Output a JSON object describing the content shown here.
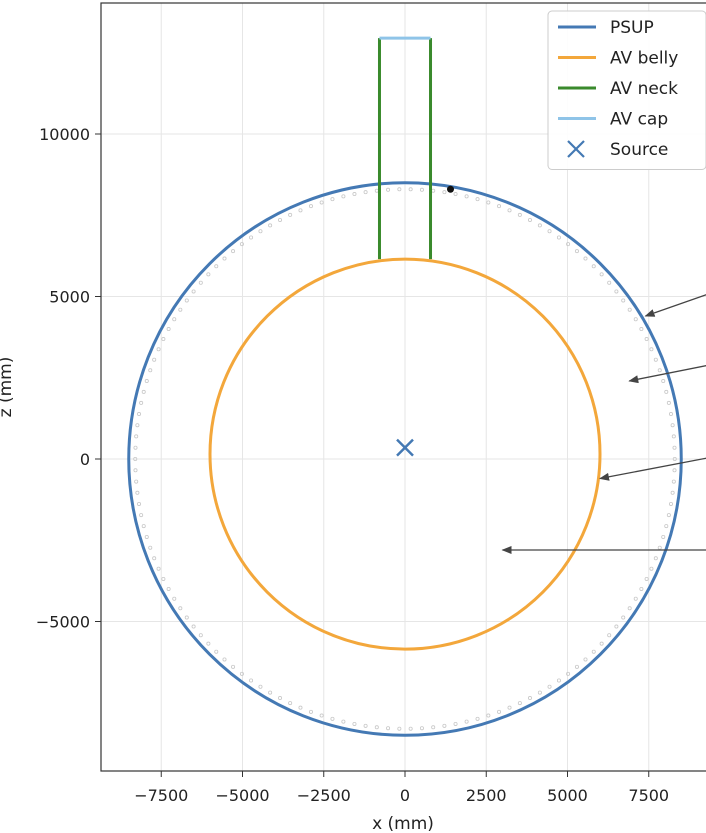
{
  "chart_data": {
    "type": "line",
    "xlabel": "x (mm)",
    "ylabel": "z (mm)",
    "xlim": [
      -9400,
      9400
    ],
    "ylim": [
      -9500,
      14000
    ],
    "grid": true,
    "legend_position": "top-right",
    "x_ticks": [
      -7500,
      -5000,
      -2500,
      0,
      2500,
      5000,
      7500
    ],
    "y_ticks": [
      -5000,
      0,
      5000,
      10000
    ],
    "series": [
      {
        "name": "PSUP",
        "shape": "circle",
        "center": [
          0,
          0
        ],
        "radius": 8500,
        "color": "#4479b4"
      },
      {
        "name": "AV belly",
        "shape": "circle",
        "center": [
          0,
          150
        ],
        "radius": 6000,
        "color": "#f3a73b"
      },
      {
        "name": "AV neck",
        "shape": "lines",
        "segments": [
          [
            [
              -785,
              6150
            ],
            [
              -785,
              12950
            ]
          ],
          [
            [
              785,
              6150
            ],
            [
              785,
              12950
            ]
          ]
        ],
        "color": "#3a8a2c"
      },
      {
        "name": "AV cap",
        "shape": "lines",
        "segments": [
          [
            [
              -785,
              12950
            ],
            [
              785,
              12950
            ]
          ]
        ],
        "color": "#8fc4e8"
      },
      {
        "name": "Source",
        "shape": "marker",
        "marker": "x",
        "points": [
          [
            0,
            350
          ]
        ],
        "color": "#4479b4"
      }
    ],
    "pmt_ring": {
      "center": [
        0,
        0
      ],
      "radius": 8300,
      "count": 150,
      "color": "#c8c8c8"
    },
    "extra_points": [
      [
        1400,
        8300
      ]
    ],
    "annotations": [
      {
        "from": [
          9400,
          5100
        ],
        "to": [
          7400,
          4400
        ]
      },
      {
        "from": [
          9400,
          2900
        ],
        "to": [
          6900,
          2400
        ]
      },
      {
        "from": [
          9400,
          50
        ],
        "to": [
          6000,
          -600
        ]
      },
      {
        "from": [
          9400,
          -2800
        ],
        "to": [
          3000,
          -2800
        ]
      }
    ]
  }
}
